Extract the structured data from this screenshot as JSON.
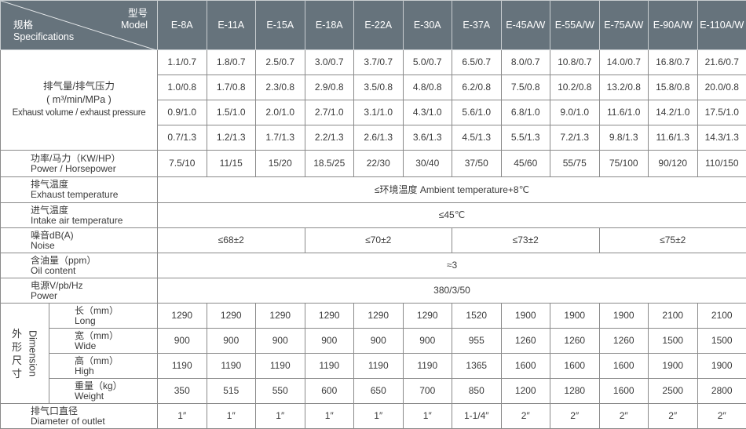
{
  "header": {
    "model_zh": "型号",
    "model_en": "Model",
    "spec_zh": "规格",
    "spec_en": "Specifications",
    "models": [
      "E-8A",
      "E-11A",
      "E-15A",
      "E-18A",
      "E-22A",
      "E-30A",
      "E-37A",
      "E-45A/W",
      "E-55A/W",
      "E-75A/W",
      "E-90A/W",
      "E-110A/W"
    ]
  },
  "exhaust": {
    "label_zh": "排气量/排气压力",
    "label_unit": "( m³/min/MPa )",
    "label_en": "Exhaust volume / exhaust pressure",
    "rows": [
      [
        "1.1/0.7",
        "1.8/0.7",
        "2.5/0.7",
        "3.0/0.7",
        "3.7/0.7",
        "5.0/0.7",
        "6.5/0.7",
        "8.0/0.7",
        "10.8/0.7",
        "14.0/0.7",
        "16.8/0.7",
        "21.6/0.7"
      ],
      [
        "1.0/0.8",
        "1.7/0.8",
        "2.3/0.8",
        "2.9/0.8",
        "3.5/0.8",
        "4.8/0.8",
        "6.2/0.8",
        "7.5/0.8",
        "10.2/0.8",
        "13.2/0.8",
        "15.8/0.8",
        "20.0/0.8"
      ],
      [
        "0.9/1.0",
        "1.5/1.0",
        "2.0/1.0",
        "2.7/1.0",
        "3.1/1.0",
        "4.3/1.0",
        "5.6/1.0",
        "6.8/1.0",
        "9.0/1.0",
        "11.6/1.0",
        "14.2/1.0",
        "17.5/1.0"
      ],
      [
        "0.7/1.3",
        "1.2/1.3",
        "1.7/1.3",
        "2.2/1.3",
        "2.6/1.3",
        "3.6/1.3",
        "4.5/1.3",
        "5.5/1.3",
        "7.2/1.3",
        "9.8/1.3",
        "11.6/1.3",
        "14.3/1.3"
      ]
    ]
  },
  "power": {
    "label_zh": "功率/马力（KW/HP）",
    "label_en": "Power / Horsepower",
    "values": [
      "7.5/10",
      "11/15",
      "15/20",
      "18.5/25",
      "22/30",
      "30/40",
      "37/50",
      "45/60",
      "55/75",
      "75/100",
      "90/120",
      "110/150"
    ]
  },
  "exhaust_temp": {
    "label_zh": "排气温度",
    "label_en": "Exhaust temperature",
    "value": "≤环境温度 Ambient temperature+8℃"
  },
  "intake_temp": {
    "label_zh": "进气温度",
    "label_en": "Intake air temperature",
    "value": "≤45℃"
  },
  "noise": {
    "label_zh": "噪音dB(A)",
    "label_en": "Noise",
    "values": [
      "≤68±2",
      "≤70±2",
      "≤73±2",
      "≤75±2"
    ]
  },
  "oil": {
    "label_zh": "含油量（ppm）",
    "label_en": "Oil content",
    "value": "≈3"
  },
  "supply": {
    "label_zh": "电源V/pb/Hz",
    "label_en": "Power",
    "value": "380/3/50"
  },
  "dimension": {
    "label_zh": "外形尺寸",
    "label_en": "Dimension",
    "rows": [
      {
        "zh": "长（mm）",
        "en": "Long",
        "values": [
          "1290",
          "1290",
          "1290",
          "1290",
          "1290",
          "1290",
          "1520",
          "1900",
          "1900",
          "1900",
          "2100",
          "2100"
        ]
      },
      {
        "zh": "宽（mm）",
        "en": "Wide",
        "values": [
          "900",
          "900",
          "900",
          "900",
          "900",
          "900",
          "955",
          "1260",
          "1260",
          "1260",
          "1500",
          "1500"
        ]
      },
      {
        "zh": "高（mm）",
        "en": "High",
        "values": [
          "1190",
          "1190",
          "1190",
          "1190",
          "1190",
          "1190",
          "1365",
          "1600",
          "1600",
          "1600",
          "1900",
          "1900"
        ]
      },
      {
        "zh": "重量（kg）",
        "en": "Weight",
        "values": [
          "350",
          "515",
          "550",
          "600",
          "650",
          "700",
          "850",
          "1200",
          "1280",
          "1600",
          "2500",
          "2800"
        ]
      }
    ]
  },
  "outlet": {
    "label_zh": "排气口直径",
    "label_en": "Diameter of outlet",
    "values": [
      "1″",
      "1″",
      "1″",
      "1″",
      "1″",
      "1″",
      "1-1/4″",
      "2″",
      "2″",
      "2″",
      "2″",
      "2″"
    ]
  }
}
